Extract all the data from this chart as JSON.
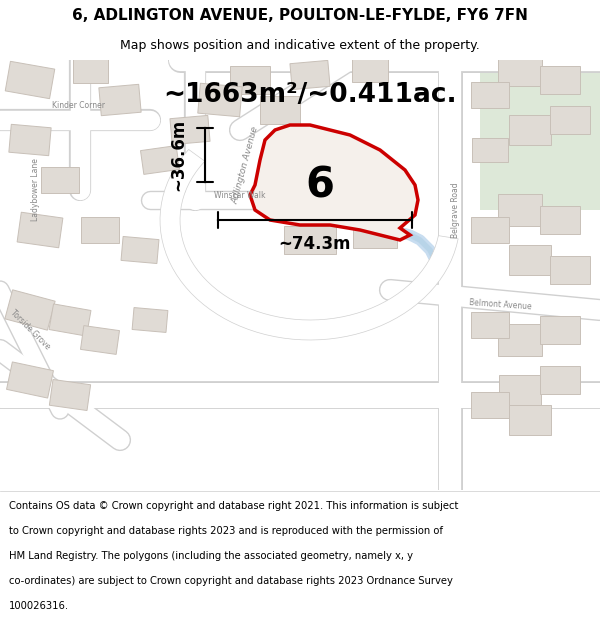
{
  "title": "6, ADLINGTON AVENUE, POULTON-LE-FYLDE, FY6 7FN",
  "subtitle": "Map shows position and indicative extent of the property.",
  "footer_lines": [
    "Contains OS data © Crown copyright and database right 2021. This information is subject",
    "to Crown copyright and database rights 2023 and is reproduced with the permission of",
    "HM Land Registry. The polygons (including the associated geometry, namely x, y",
    "co-ordinates) are subject to Crown copyright and database rights 2023 Ordnance Survey",
    "100026316."
  ],
  "area_label": "~1663m²/~0.411ac.",
  "width_label": "~74.3m",
  "height_label": "~36.6m",
  "plot_number": "6",
  "bg_color": "#f0eeea",
  "road_color": "#ffffff",
  "road_edge": "#d0d0d0",
  "building_fill": "#e0dbd5",
  "building_stroke": "#c8c0b8",
  "highlight_fill": "#f5f0eb",
  "highlight_stroke": "#cc0000",
  "green_color": "#dde8d8",
  "water_color": "#c8ddf0",
  "street_label_color": "#888888",
  "title_fontsize": 11,
  "subtitle_fontsize": 9,
  "footer_fontsize": 7.2,
  "area_fontsize": 19,
  "dim_fontsize": 12,
  "plot_num_fontsize": 30
}
